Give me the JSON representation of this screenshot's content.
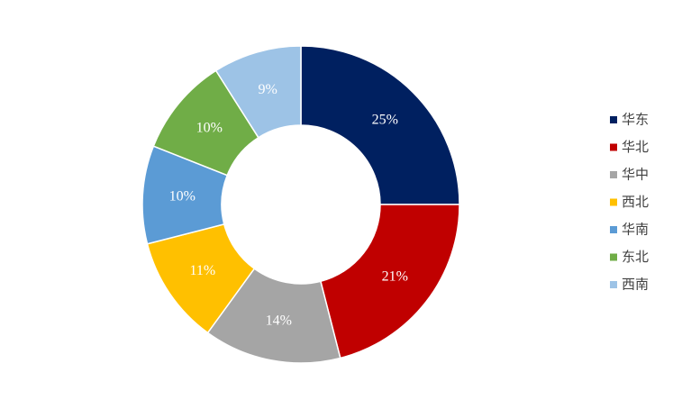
{
  "chart_data": {
    "type": "pie",
    "categories": [
      "华东",
      "华北",
      "华中",
      "西北",
      "华南",
      "东北",
      "西南"
    ],
    "values": [
      25,
      21,
      14,
      11,
      10,
      10,
      9
    ],
    "value_labels": [
      "25%",
      "21%",
      "14%",
      "11%",
      "10%",
      "10%",
      "9%"
    ],
    "colors": [
      "#002060",
      "#c00000",
      "#a5a5a5",
      "#ffc000",
      "#5b9bd5",
      "#70ad47",
      "#9dc3e6"
    ],
    "donut": true,
    "legend": "right"
  }
}
